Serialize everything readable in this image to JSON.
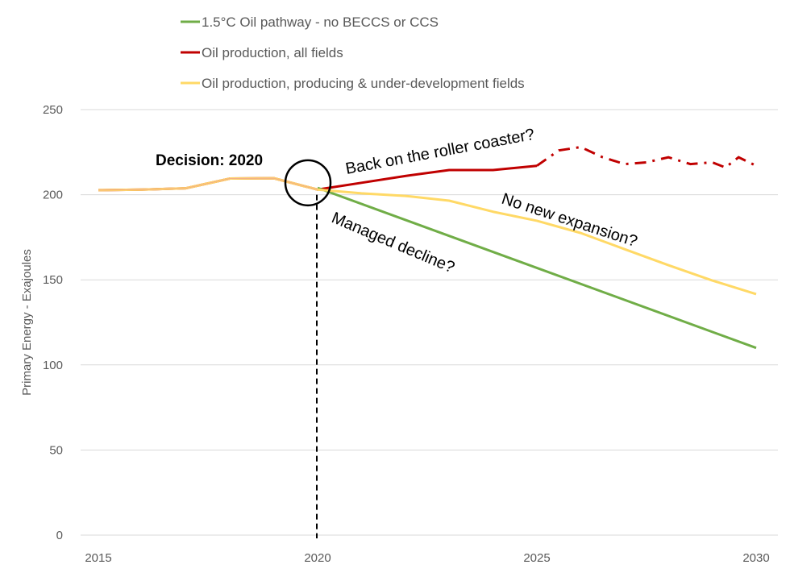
{
  "chart_data": {
    "type": "line",
    "title": "",
    "xlabel": "",
    "ylabel": "Primary Energy - Exajoules",
    "xlim": [
      2015,
      2030
    ],
    "ylim": [
      0,
      250
    ],
    "x_ticks": [
      2015,
      2020,
      2025,
      2030
    ],
    "y_ticks": [
      0,
      50,
      100,
      150,
      200,
      250
    ],
    "grid": "horizontal",
    "legend_position": "top",
    "series": [
      {
        "name": "Oil production, all fields",
        "color": "#C00000",
        "x": [
          2015,
          2016,
          2017,
          2018,
          2019,
          2020,
          2021,
          2022,
          2023,
          2024,
          2025
        ],
        "y": [
          202.7,
          203,
          203.8,
          209.5,
          209.7,
          203,
          207,
          211,
          214.5,
          214.5,
          217
        ],
        "projection": {
          "style": "dash-dot",
          "x": [
            2025,
            2025.5,
            2026,
            2026.5,
            2027,
            2027.5,
            2028,
            2028.5,
            2029,
            2029.3,
            2029.6,
            2030
          ],
          "y": [
            217,
            226,
            228,
            222,
            218,
            219,
            222,
            218,
            219,
            216,
            222,
            217
          ]
        }
      },
      {
        "name": "Oil production, producing & under-development fields",
        "color": "#FFD966",
        "x": [
          2015,
          2016,
          2017,
          2018,
          2019,
          2020,
          2021,
          2022,
          2023,
          2024,
          2025,
          2026,
          2027,
          2028,
          2029,
          2030
        ],
        "y": [
          202.7,
          203,
          203.8,
          209.5,
          209.7,
          203,
          200.8,
          199.3,
          196.5,
          190,
          184.7,
          177.5,
          168,
          158.6,
          149.6,
          141.6
        ]
      },
      {
        "name": "1.5°C Oil pathway - no BECCS or CCS",
        "color": "#70AD47",
        "x": [
          2020,
          2030
        ],
        "y": [
          204,
          110
        ]
      }
    ],
    "legend_order": [
      2,
      0,
      1
    ],
    "annotations": {
      "decision": "Decision: 2020",
      "decision_year": 2020,
      "roller_coaster": "Back on the roller coaster?",
      "no_expansion": "No new expansion?",
      "managed_decline": "Managed decline?"
    }
  }
}
